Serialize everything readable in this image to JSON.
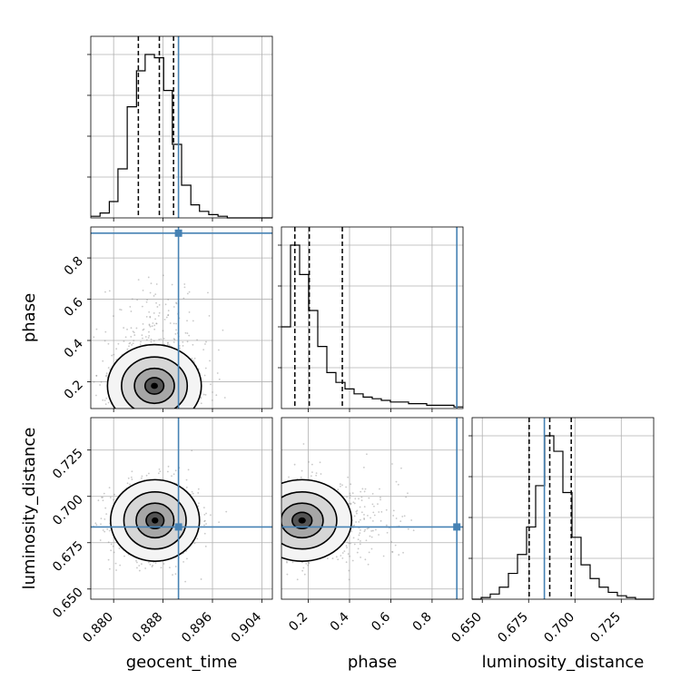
{
  "chart_data": {
    "type": "corner",
    "parameters": [
      "geocent_time",
      "phase",
      "luminosity_distance"
    ],
    "truths": {
      "geocent_time": 0.8905,
      "phase": 0.92,
      "luminosity_distance": 0.6835
    },
    "color_truth": "#4682b4",
    "color_hist": "#000000",
    "grid": true,
    "axes": {
      "geocent_time": {
        "range": [
          0.8763,
          0.9057
        ],
        "ticks": [
          0.88,
          0.888,
          0.896,
          0.904
        ],
        "tick_labels": [
          "0.880",
          "0.888",
          "0.896",
          "0.904"
        ]
      },
      "phase": {
        "range": [
          0.07,
          0.95
        ],
        "ticks": [
          0.2,
          0.4,
          0.6,
          0.8
        ],
        "tick_labels": [
          "0.2",
          "0.4",
          "0.6",
          "0.8"
        ]
      },
      "luminosity_distance": {
        "range": [
          0.6445,
          0.7425
        ],
        "ticks": [
          0.65,
          0.675,
          0.7,
          0.725
        ],
        "tick_labels": [
          "0.650",
          "0.675",
          "0.700",
          "0.725"
        ]
      }
    },
    "labels": {
      "geocent_time": "geocent_time",
      "phase": "phase",
      "luminosity_distance": "luminosity_distance"
    },
    "histograms": {
      "geocent_time": {
        "edges": [
          0.8763,
          0.8778,
          0.8793,
          0.8807,
          0.8822,
          0.8837,
          0.8851,
          0.8866,
          0.8881,
          0.8895,
          0.891,
          0.8925,
          0.8939,
          0.8954,
          0.8969,
          0.8984,
          0.8998,
          0.9013,
          0.9028,
          0.9042,
          0.9057
        ],
        "counts": [
          1,
          3,
          10,
          30,
          68,
          90,
          100,
          98,
          78,
          45,
          20,
          8,
          4,
          2,
          1,
          0,
          0,
          0,
          0,
          0
        ],
        "quantiles": [
          0.884,
          0.8874,
          0.8897
        ]
      },
      "phase": {
        "edges": [
          0.07,
          0.114,
          0.158,
          0.202,
          0.246,
          0.29,
          0.334,
          0.378,
          0.422,
          0.466,
          0.51,
          0.554,
          0.598,
          0.642,
          0.686,
          0.73,
          0.774,
          0.818,
          0.862,
          0.906,
          0.95
        ],
        "counts": [
          50,
          100,
          82,
          60,
          38,
          22,
          16,
          12,
          9,
          7,
          6,
          5,
          4,
          4,
          3,
          3,
          2,
          2,
          2,
          1
        ],
        "quantiles": [
          0.135,
          0.205,
          0.365
        ]
      },
      "luminosity_distance": {
        "edges": [
          0.6445,
          0.6494,
          0.6543,
          0.6592,
          0.6641,
          0.669,
          0.6739,
          0.6788,
          0.6837,
          0.6886,
          0.6935,
          0.6984,
          0.7033,
          0.7082,
          0.7131,
          0.718,
          0.7229,
          0.7278,
          0.7327,
          0.7376,
          0.7425
        ],
        "counts": [
          0,
          1,
          3,
          7,
          15,
          26,
          42,
          66,
          95,
          86,
          62,
          36,
          20,
          12,
          7,
          4,
          2,
          1,
          0,
          0
        ],
        "quantiles": [
          0.6753,
          0.6864,
          0.698
        ]
      }
    },
    "contours_2d": {
      "phase_vs_geocent_time": {
        "peak": [
          0.8866,
          0.18
        ],
        "spread": [
          0.0038,
          0.1
        ],
        "levels": 4
      },
      "luminosity_distance_vs_geocent_time": {
        "peak": [
          0.8867,
          0.687
        ],
        "spread": [
          0.0036,
          0.011
        ],
        "levels": 4
      },
      "luminosity_distance_vs_phase": {
        "peak": [
          0.17,
          0.687
        ],
        "spread": [
          0.12,
          0.011
        ],
        "levels": 4
      }
    }
  }
}
